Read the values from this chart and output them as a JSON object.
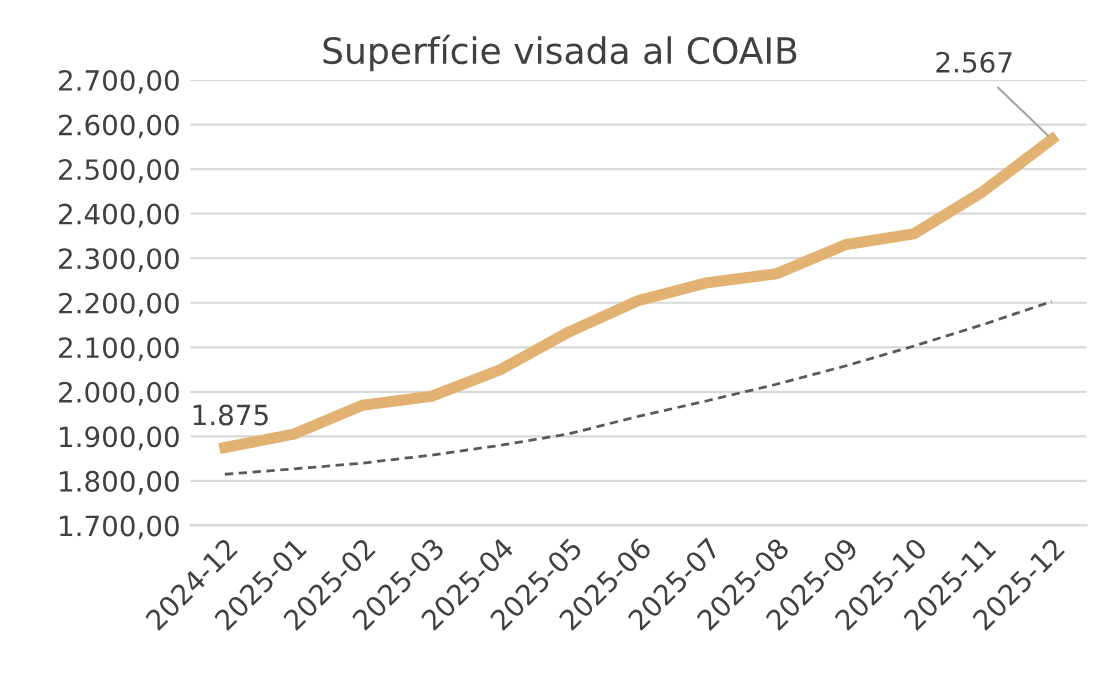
{
  "chart_data": {
    "type": "line",
    "title": "Superfície visada al COAIB",
    "categories": [
      "2024-12",
      "2025-01",
      "2025-02",
      "2025-03",
      "2025-04",
      "2025-05",
      "2025-06",
      "2025-07",
      "2025-08",
      "2025-09",
      "2025-10",
      "2025-11",
      "2025-12"
    ],
    "series": [
      {
        "color": "#e2b272",
        "values": [
          1875,
          1905,
          1970,
          1990,
          2050,
          2135,
          2205,
          2245,
          2265,
          2330,
          2355,
          2450,
          2567
        ],
        "value_labels": [
          "1.875",
          null,
          null,
          null,
          null,
          null,
          null,
          null,
          null,
          null,
          null,
          null,
          "2.567"
        ]
      },
      {
        "color": "#595959",
        "line_style": "dashed",
        "values": [
          1815,
          1827,
          1840,
          1858,
          1880,
          1906,
          1945,
          1980,
          2017,
          2058,
          2103,
          2151,
          2203
        ]
      }
    ],
    "ylim": [
      1700,
      2700
    ],
    "yticks": [
      {
        "value": 1700,
        "label": "1.700,00"
      },
      {
        "value": 1800,
        "label": "1.800,00"
      },
      {
        "value": 1900,
        "label": "1.900,00"
      },
      {
        "value": 2000,
        "label": "2.000,00"
      },
      {
        "value": 2100,
        "label": "2.100,00"
      },
      {
        "value": 2200,
        "label": "2.200,00"
      },
      {
        "value": 2300,
        "label": "2.300,00"
      },
      {
        "value": 2400,
        "label": "2.400,00"
      },
      {
        "value": 2500,
        "label": "2.500,00"
      },
      {
        "value": 2600,
        "label": "2.600,00"
      },
      {
        "value": 2700,
        "label": "2.700,00"
      }
    ],
    "grid": "y",
    "legend": false,
    "marker": "none"
  }
}
